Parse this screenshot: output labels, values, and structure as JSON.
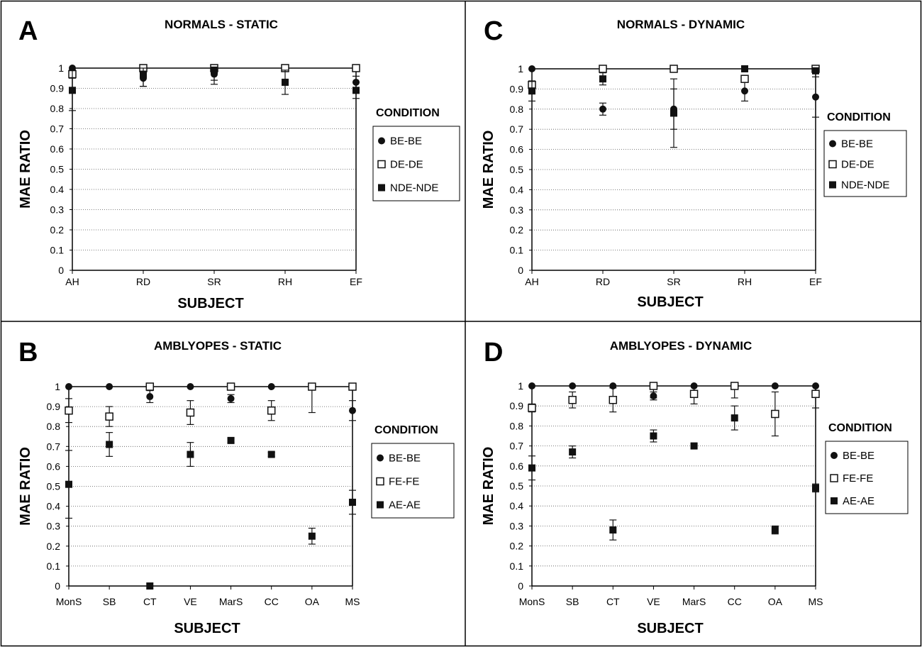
{
  "chart_data": [
    {
      "panel": "A",
      "type": "scatter",
      "title": "NORMALS - STATIC",
      "xlabel": "SUBJECT",
      "ylabel": "MAE RATIO",
      "ylim": [
        0,
        1
      ],
      "yticks": [
        "0",
        "0.1",
        "0.2",
        "0.3",
        "0.4",
        "0.5",
        "0.6",
        "0.7",
        "0.8",
        "0.9",
        "1"
      ],
      "grid": true,
      "legend_placement": "right",
      "legend_title": "CONDITION",
      "categories": [
        "AH",
        "RD",
        "SR",
        "RH",
        "EF"
      ],
      "series": [
        {
          "name": "BE-BE",
          "marker": "filled-circle",
          "values": [
            1.0,
            0.95,
            0.97,
            1.0,
            0.93
          ],
          "errors": [
            0,
            0.04,
            0.03,
            0,
            0.03
          ]
        },
        {
          "name": "DE-DE",
          "marker": "open-square",
          "values": [
            0.97,
            1.0,
            1.0,
            1.0,
            1.0
          ],
          "errors": [
            0.02,
            0,
            0,
            0,
            0
          ]
        },
        {
          "name": "NDE-NDE",
          "marker": "filled-square",
          "values": [
            0.89,
            0.97,
            0.99,
            0.93,
            0.89
          ],
          "errors": [
            0.1,
            0.06,
            0.07,
            0.06,
            0.04
          ]
        }
      ]
    },
    {
      "panel": "C",
      "type": "scatter",
      "title": "NORMALS - DYNAMIC",
      "xlabel": "SUBJECT",
      "ylabel": "MAE RATIO",
      "ylim": [
        0,
        1
      ],
      "yticks": [
        "0",
        "0.1",
        "0.2",
        "0.3",
        "0.4",
        "0.5",
        "0.6",
        "0.7",
        "0.8",
        "0.9",
        "1"
      ],
      "grid": true,
      "legend_placement": "right",
      "legend_title": "CONDITION",
      "categories": [
        "AH",
        "RD",
        "SR",
        "RH",
        "EF"
      ],
      "series": [
        {
          "name": "BE-BE",
          "marker": "filled-circle",
          "values": [
            1.0,
            0.8,
            0.8,
            0.89,
            0.86
          ],
          "errors": [
            0,
            0.03,
            0.1,
            0.05,
            0.1
          ]
        },
        {
          "name": "DE-DE",
          "marker": "open-square",
          "values": [
            0.92,
            1.0,
            1.0,
            0.95,
            1.0
          ],
          "errors": [
            0.02,
            0,
            0,
            0,
            0
          ]
        },
        {
          "name": "NDE-NDE",
          "marker": "filled-square",
          "values": [
            0.89,
            0.95,
            0.78,
            1.0,
            0.99
          ],
          "errors": [
            0.05,
            0.03,
            0.17,
            0,
            0.01
          ]
        }
      ]
    },
    {
      "panel": "B",
      "type": "scatter",
      "title": "AMBLYOPES - STATIC",
      "xlabel": "SUBJECT",
      "ylabel": "MAE RATIO",
      "ylim": [
        0,
        1
      ],
      "yticks": [
        "0",
        "0.1",
        "0.2",
        "0.3",
        "0.4",
        "0.5",
        "0.6",
        "0.7",
        "0.8",
        "0.9",
        "1"
      ],
      "grid": true,
      "legend_placement": "right",
      "legend_title": "CONDITION",
      "categories": [
        "MonS",
        "SB",
        "CT",
        "VE",
        "MarS",
        "CC",
        "OA",
        "MS"
      ],
      "series": [
        {
          "name": "BE-BE",
          "marker": "filled-circle",
          "values": [
            1.0,
            1.0,
            0.95,
            1.0,
            0.94,
            1.0,
            1.0,
            0.88
          ],
          "errors": [
            0,
            0,
            0.03,
            0,
            0.02,
            0,
            0,
            0.05
          ]
        },
        {
          "name": "FE-FE",
          "marker": "open-square",
          "values": [
            0.88,
            0.85,
            1.0,
            0.87,
            1.0,
            0.88,
            1.0,
            1.0
          ],
          "errors": [
            0.06,
            0.05,
            0,
            0.06,
            0,
            0.05,
            0.13,
            0
          ]
        },
        {
          "name": "AE-AE",
          "marker": "filled-square",
          "values": [
            0.51,
            0.71,
            0.0,
            0.66,
            0.73,
            0.66,
            0.25,
            0.42
          ],
          "errors": [
            0.17,
            0.06,
            0,
            0.06,
            0.01,
            0.01,
            0.04,
            0.06
          ]
        }
      ]
    },
    {
      "panel": "D",
      "type": "scatter",
      "title": "AMBLYOPES - DYNAMIC",
      "xlabel": "SUBJECT",
      "ylabel": "MAE RATIO",
      "ylim": [
        0,
        1
      ],
      "yticks": [
        "0",
        "0.1",
        "0.2",
        "0.3",
        "0.4",
        "0.5",
        "0.6",
        "0.7",
        "0.8",
        "0.9",
        "1"
      ],
      "grid": true,
      "legend_placement": "right",
      "legend_title": "CONDITION",
      "categories": [
        "MonS",
        "SB",
        "CT",
        "VE",
        "MarS",
        "CC",
        "OA",
        "MS"
      ],
      "series": [
        {
          "name": "BE-BE",
          "marker": "filled-circle",
          "values": [
            1.0,
            1.0,
            1.0,
            0.95,
            1.0,
            1.0,
            1.0,
            1.0
          ],
          "errors": [
            0,
            0,
            0,
            0.02,
            0,
            0,
            0,
            0
          ]
        },
        {
          "name": "FE-FE",
          "marker": "open-square",
          "values": [
            0.89,
            0.93,
            0.93,
            1.0,
            0.96,
            1.0,
            0.86,
            0.96
          ],
          "errors": [
            0.02,
            0.04,
            0.06,
            0.06,
            0.05,
            0.06,
            0.11,
            0.07
          ]
        },
        {
          "name": "AE-AE",
          "marker": "filled-square",
          "values": [
            0.59,
            0.67,
            0.28,
            0.75,
            0.7,
            0.84,
            0.28,
            0.49
          ],
          "errors": [
            0.06,
            0.03,
            0.05,
            0.03,
            0.01,
            0.06,
            0.02,
            0.02
          ]
        }
      ]
    }
  ]
}
